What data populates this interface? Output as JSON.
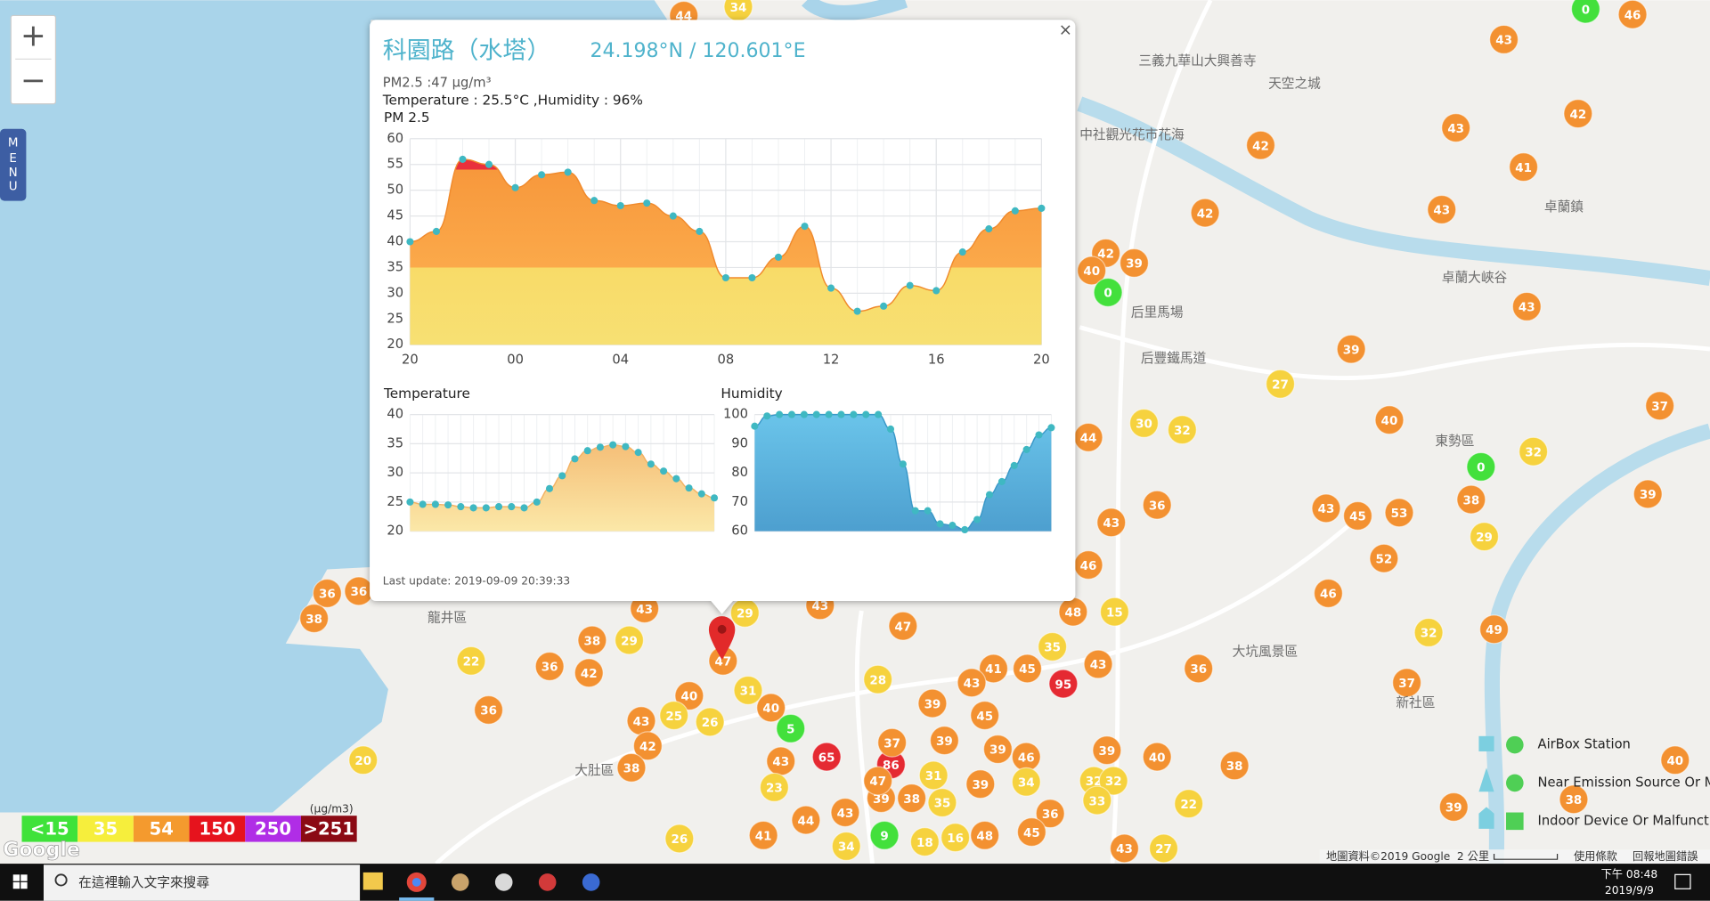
{
  "zoom": {
    "in": "+",
    "out": "−"
  },
  "menu": [
    "M",
    "E",
    "N",
    "U"
  ],
  "popup": {
    "close": "×",
    "title": "科園路（水塔）",
    "coords": "24.198°N / 120.601°E",
    "pm_line": "PM2.5 :47 μg/m³",
    "weather_line": "Temperature : 25.5°C ,Humidity : 96%",
    "last_update": "Last update: 2019-09-09 20:39:33",
    "pm_chart": {
      "type": "area",
      "title": "PM 2.5",
      "values": [
        40,
        42,
        56,
        55,
        50.5,
        53,
        53.5,
        48,
        47,
        47.5,
        45,
        42,
        33,
        33,
        37,
        43,
        31,
        26.5,
        27.5,
        31.5,
        30.5,
        38,
        42.5,
        46,
        46.5
      ],
      "xlim": [
        0,
        24
      ],
      "xticks": [
        {
          "value": 0,
          "label": "20"
        },
        {
          "value": 4,
          "label": "00"
        },
        {
          "value": 8,
          "label": "04"
        },
        {
          "value": 12,
          "label": "08"
        },
        {
          "value": 16,
          "label": "12"
        },
        {
          "value": 20,
          "label": "16"
        },
        {
          "value": 24,
          "label": "20"
        }
      ],
      "ylim": [
        20,
        60
      ],
      "yticks": [
        20,
        25,
        30,
        35,
        40,
        45,
        50,
        55,
        60
      ],
      "grid": true
    },
    "temp_chart": {
      "type": "area",
      "title": "Temperature",
      "color": "#f5c07a",
      "values": [
        25,
        24.6,
        24.6,
        24.5,
        24.2,
        24,
        24,
        24.2,
        24.2,
        24,
        25,
        27.3,
        29.5,
        32.4,
        33.8,
        34.4,
        34.8,
        34.5,
        33.5,
        31.5,
        30.3,
        29,
        27.4,
        26.4,
        25.7
      ],
      "ylim": [
        20,
        40
      ],
      "yticks": [
        20,
        25,
        30,
        35,
        40
      ],
      "grid": true
    },
    "hum_chart": {
      "type": "area",
      "title": "Humidity",
      "color": "#5cb6e0",
      "values": [
        96,
        99.5,
        100,
        100,
        100,
        100,
        100,
        100,
        100,
        100,
        100,
        95,
        83,
        67,
        67,
        62.5,
        62,
        60.5,
        64,
        72.5,
        77,
        82.5,
        88,
        93,
        95.5
      ],
      "ylim": [
        60,
        100
      ],
      "yticks": [
        60,
        70,
        80,
        90,
        100
      ],
      "grid": true
    }
  },
  "markers": [
    44,
    34,
    0,
    46,
    43,
    42,
    43,
    42,
    41,
    42,
    43,
    42,
    40,
    39,
    0,
    43,
    39,
    27,
    30,
    32,
    40,
    37,
    44,
    32,
    0,
    36,
    43,
    38,
    39,
    43,
    45,
    53,
    29,
    52,
    46,
    46,
    15,
    48,
    32,
    49,
    36,
    36,
    38,
    38,
    29,
    43,
    29,
    43,
    47,
    47,
    22,
    36,
    42,
    35,
    43,
    41,
    45,
    95,
    36,
    28,
    43,
    37,
    36,
    40,
    31,
    40,
    5,
    43,
    25,
    26,
    39,
    39,
    45,
    42,
    43,
    65,
    86,
    37,
    39,
    46,
    39,
    40,
    38,
    40,
    20,
    38,
    31,
    39,
    34,
    32,
    32,
    33,
    22,
    38,
    39,
    38,
    35,
    36,
    44,
    43,
    39,
    41,
    9,
    34,
    18,
    16,
    48,
    45,
    43,
    27,
    26,
    47,
    23
  ],
  "places": [
    "龍井區",
    "東勢區",
    "卓蘭鎮",
    "新社區",
    "后里馬場",
    "大坑風景區",
    "天空之城",
    "中社觀光花市花海",
    "后豐鐵馬道",
    "卓蘭大峽谷",
    "三義九華山大興善寺",
    "大肚區"
  ],
  "legend": {
    "unit": "(μg/m3)",
    "levels": [
      {
        "value": 15,
        "label": "<15",
        "color": "#3fe23a"
      },
      {
        "value": 35,
        "label": "35",
        "color": "#f6ee3c"
      },
      {
        "value": 54,
        "label": "54",
        "color": "#f49a2e"
      },
      {
        "value": 150,
        "label": "150",
        "color": "#e6131d"
      },
      {
        "value": 250,
        "label": "250",
        "color": "#b02de6"
      },
      {
        "value": 251,
        "label": ">251",
        "color": "#8b0a14"
      }
    ]
  },
  "marker_colors": {
    "yellow": "#f6d23e",
    "orange": "#f39131",
    "red": "#e52a32",
    "green": "#43e03c"
  },
  "station_legend": [
    "AirBox Station",
    "Near Emission Source Or Malfunction",
    "Indoor Device Or Malfunction"
  ],
  "google": "Google",
  "attribution": [
    "地圖資料©2019 Google",
    "2 公里",
    "使用條款",
    "回報地圖錯誤"
  ],
  "taskbar": {
    "search": "在這裡輸入文字來搜尋",
    "time": "下午 08:48",
    "date": "2019/9/9"
  }
}
